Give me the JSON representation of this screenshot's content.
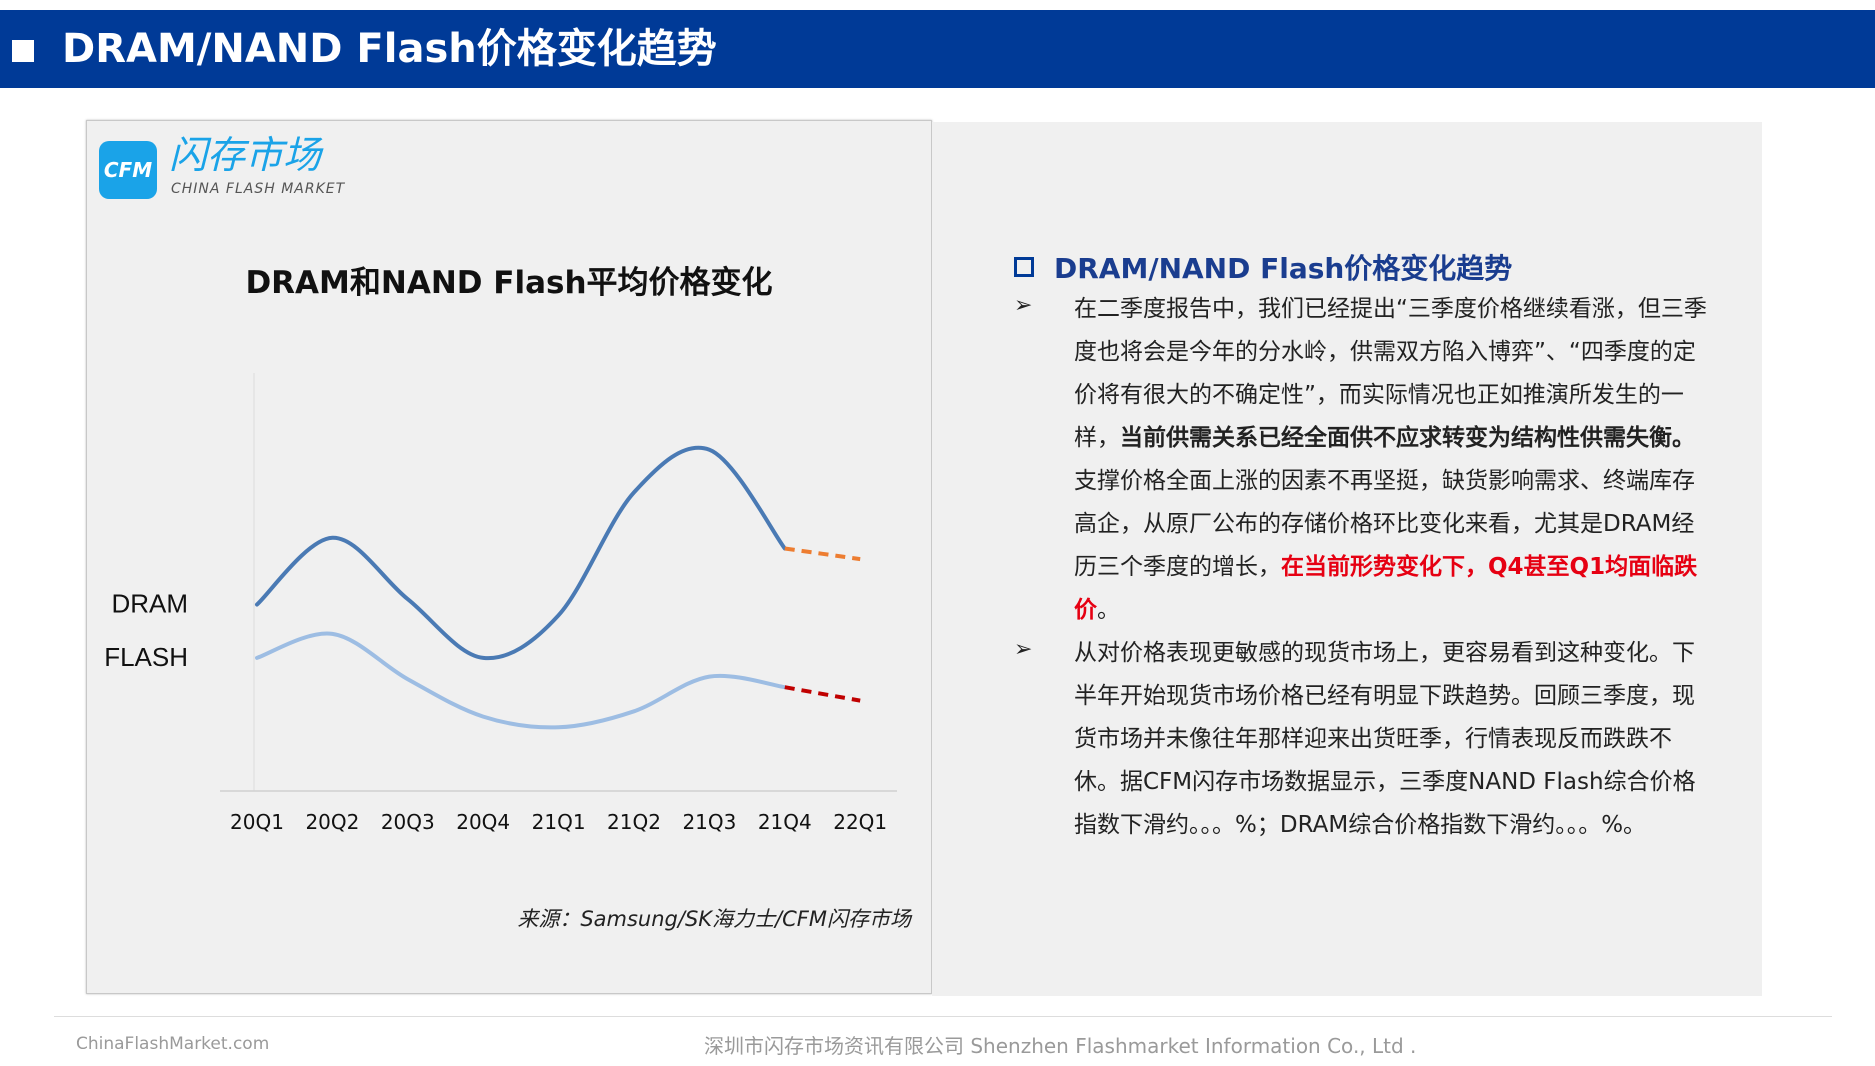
{
  "header": {
    "title": "DRAM/NAND Flash价格变化趋势"
  },
  "logo": {
    "box": "CFM",
    "cn": "闪存市场",
    "en": "CHINA FLASH MARKET"
  },
  "chart_data": {
    "type": "line",
    "title": "DRAM和NAND Flash平均价格变化",
    "categories": [
      "20Q1",
      "20Q2",
      "20Q3",
      "20Q4",
      "21Q1",
      "21Q2",
      "21Q3",
      "21Q4",
      "22Q1"
    ],
    "series": [
      {
        "name": "DRAM",
        "color": "#4a7ab4",
        "forecast_color": "#ed7d31",
        "values": [
          57,
          82,
          59,
          37,
          53,
          99,
          115,
          78,
          74
        ],
        "forecast_from_index": 7
      },
      {
        "name": "FLASH",
        "color": "#9dbde3",
        "forecast_color": "#c00000",
        "values": [
          37,
          46,
          29,
          15,
          11,
          17,
          30,
          26,
          21
        ],
        "forecast_from_index": 7
      }
    ],
    "ylim": [
      -20,
      140
    ],
    "y_axis_visible": false,
    "grid": false,
    "legend": "series labels at left of lines",
    "source": "来源：Samsung/SK海力士/CFM闪存市场"
  },
  "section": {
    "heading": "DRAM/NAND Flash价格变化趋势",
    "bullet1": {
      "t1": "在二季度报告中，我们已经提出“三季度价格继续看涨，但三季度也将会是今年的分水岭，供需双方陷入博弈”、“四季度的定价将有很大的不确定性”，而实际情况也正如推演所发生的一样，",
      "bold": "当前供需关系已经全面供不应求转变为结构性供需失衡。",
      "t2": "支撑价格全面上涨的因素不再坚挺，缺货影响需求、终端库存高企，从原厂公布的存储价格环比变化来看，尤其是DRAM经历三个季度的增长，",
      "red": "在当前形势变化下，Q4甚至Q1均面临跌价",
      "t3": "。"
    },
    "bullet2": {
      "text": "从对价格表现更敏感的现货市场上，更容易看到这种变化。下半年开始现货市场价格已经有明显下跌趋势。回顾三季度，现货市场并未像往年那样迎来出货旺季，行情表现反而跌跌不休。据CFM闪存市场数据显示，三季度NAND Flash综合价格指数下滑约。。。%；DRAM综合价格指数下滑约。。。%。"
    },
    "arrow_glyph": "➢"
  },
  "footer": {
    "left": "ChinaFlashMarket.com",
    "center": "深圳市闪存市场资讯有限公司  Shenzhen Flashmarket Information Co., Ltd ."
  }
}
